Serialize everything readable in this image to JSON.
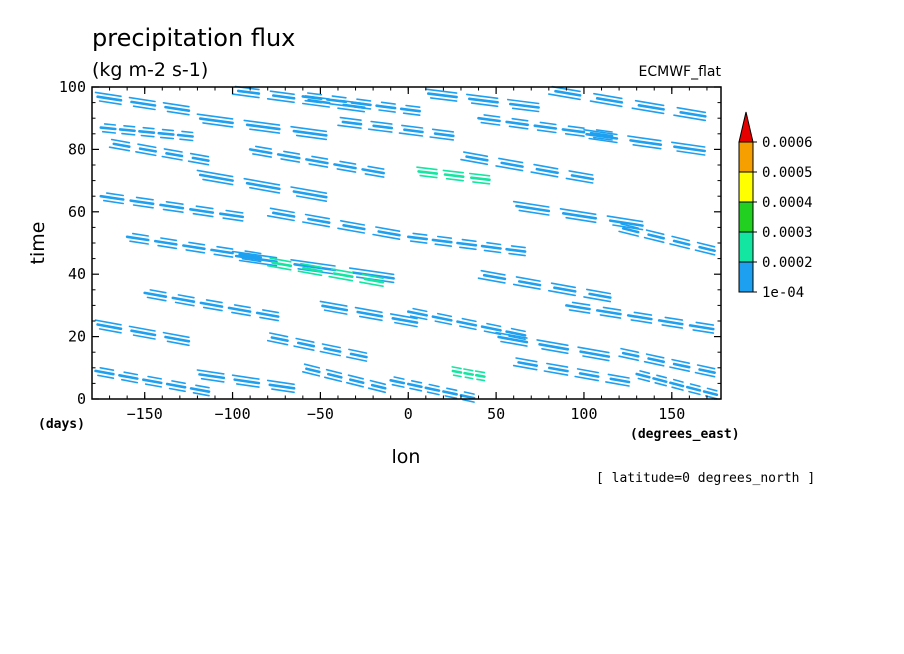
{
  "chart_data": {
    "type": "heatmap",
    "title": "precipitation flux",
    "subtitle": "(kg m-2 s-1)",
    "model_label": "ECMWF_flat",
    "xlabel": "lon",
    "ylabel": "time",
    "x_units": "(degrees_east)",
    "y_units": "(days)",
    "footer_note": "[ latitude=0 degrees_north ]",
    "xlim": [
      -180,
      178
    ],
    "ylim": [
      0,
      100
    ],
    "x_ticks": [
      -150,
      -100,
      -50,
      0,
      50,
      100,
      150
    ],
    "y_ticks": [
      0,
      20,
      40,
      60,
      80,
      100
    ],
    "colorbar": {
      "levels": [
        "1e-04",
        "0.0002",
        "0.0003",
        "0.0004",
        "0.0005",
        "0.0006"
      ],
      "colors": [
        "#1ea0f0",
        "#12e6a0",
        "#22d022",
        "#ffff00",
        "#f5a000",
        "#e60000"
      ],
      "extend": "max"
    },
    "features": [
      {
        "lon": [
          -178,
          -120
        ],
        "time": [
          97,
          92
        ],
        "level": 1
      },
      {
        "lon": [
          -100,
          -20
        ],
        "time": [
          99,
          93
        ],
        "level": 1
      },
      {
        "lon": [
          -60,
          10
        ],
        "time": [
          97,
          92
        ],
        "level": 1
      },
      {
        "lon": [
          10,
          80
        ],
        "time": [
          98,
          93
        ],
        "level": 1
      },
      {
        "lon": [
          80,
          175
        ],
        "time": [
          99,
          90
        ],
        "level": 1
      },
      {
        "lon": [
          -175,
          -120
        ],
        "time": [
          87,
          84
        ],
        "level": 1
      },
      {
        "lon": [
          -120,
          -40
        ],
        "time": [
          90,
          84
        ],
        "level": 1
      },
      {
        "lon": [
          -40,
          30
        ],
        "time": [
          89,
          84
        ],
        "level": 1
      },
      {
        "lon": [
          40,
          120
        ],
        "time": [
          90,
          84
        ],
        "level": 1
      },
      {
        "lon": [
          100,
          175
        ],
        "time": [
          85,
          79
        ],
        "level": 1
      },
      {
        "lon": [
          -170,
          -110
        ],
        "time": [
          82,
          76
        ],
        "level": 1
      },
      {
        "lon": [
          -90,
          -10
        ],
        "time": [
          80,
          72
        ],
        "level": 1
      },
      {
        "lon": [
          5,
          50
        ],
        "time": [
          73,
          70
        ],
        "level": 2
      },
      {
        "lon": [
          30,
          110
        ],
        "time": [
          78,
          70
        ],
        "level": 1
      },
      {
        "lon": [
          -175,
          -90
        ],
        "time": [
          65,
          58
        ],
        "level": 1
      },
      {
        "lon": [
          -120,
          -40
        ],
        "time": [
          72,
          64
        ],
        "level": 1
      },
      {
        "lon": [
          -80,
          0
        ],
        "time": [
          60,
          52
        ],
        "level": 1
      },
      {
        "lon": [
          0,
          70
        ],
        "time": [
          52,
          47
        ],
        "level": 1
      },
      {
        "lon": [
          60,
          140
        ],
        "time": [
          62,
          55
        ],
        "level": 1
      },
      {
        "lon": [
          120,
          178
        ],
        "time": [
          55,
          47
        ],
        "level": 1
      },
      {
        "lon": [
          -160,
          -80
        ],
        "time": [
          52,
          45
        ],
        "level": 1
      },
      {
        "lon": [
          -100,
          0
        ],
        "time": [
          46,
          38
        ],
        "level": 1
      },
      {
        "lon": [
          -80,
          -10
        ],
        "time": [
          44,
          37
        ],
        "level": 2
      },
      {
        "lon": [
          -150,
          -70
        ],
        "time": [
          34,
          26
        ],
        "level": 1
      },
      {
        "lon": [
          -50,
          10
        ],
        "time": [
          30,
          24
        ],
        "level": 1
      },
      {
        "lon": [
          40,
          120
        ],
        "time": [
          40,
          32
        ],
        "level": 1
      },
      {
        "lon": [
          90,
          178
        ],
        "time": [
          30,
          22
        ],
        "level": 1
      },
      {
        "lon": [
          -178,
          -120
        ],
        "time": [
          24,
          18
        ],
        "level": 1
      },
      {
        "lon": [
          -80,
          -20
        ],
        "time": [
          20,
          13
        ],
        "level": 1
      },
      {
        "lon": [
          0,
          70
        ],
        "time": [
          28,
          20
        ],
        "level": 1
      },
      {
        "lon": [
          50,
          120
        ],
        "time": [
          20,
          13
        ],
        "level": 1
      },
      {
        "lon": [
          120,
          178
        ],
        "time": [
          15,
          8
        ],
        "level": 1
      },
      {
        "lon": [
          -178,
          -110
        ],
        "time": [
          9,
          2
        ],
        "level": 1
      },
      {
        "lon": [
          -120,
          -60
        ],
        "time": [
          8,
          3
        ],
        "level": 1
      },
      {
        "lon": [
          -60,
          -10
        ],
        "time": [
          10,
          3
        ],
        "level": 1
      },
      {
        "lon": [
          -10,
          40
        ],
        "time": [
          6,
          0
        ],
        "level": 1
      },
      {
        "lon": [
          25,
          45
        ],
        "time": [
          9,
          7
        ],
        "level": 2
      },
      {
        "lon": [
          60,
          130
        ],
        "time": [
          12,
          5
        ],
        "level": 1
      },
      {
        "lon": [
          130,
          178
        ],
        "time": [
          8,
          1
        ],
        "level": 1
      }
    ]
  }
}
